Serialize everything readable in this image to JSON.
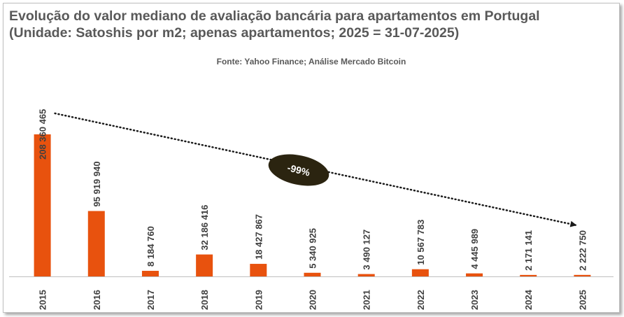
{
  "chart_data": {
    "type": "bar",
    "title": "Evolução do valor mediano de avaliação bancária para apartamentos em Portugal\n(Unidade: Satoshis por m2; apenas apartamentos; 2025 = 31-07-2025)",
    "subtitle": "Fonte: Yahoo Finance; Análise Mercado Bitcoin",
    "categories": [
      "2015",
      "2016",
      "2017",
      "2018",
      "2019",
      "2020",
      "2021",
      "2022",
      "2023",
      "2024",
      "2025"
    ],
    "values": [
      208360465,
      95919940,
      8184760,
      32186416,
      18427867,
      5340925,
      3490127,
      10567783,
      4445989,
      2171141,
      2222750
    ],
    "value_labels": [
      "208 360 465",
      "95 919 940",
      "8 184 760",
      "32 186 416",
      "18 427 867",
      "5 340 925",
      "3 490 127",
      "10 567 783",
      "4 445 989",
      "2 171 141",
      "2 222 750"
    ],
    "ylim": [
      0,
      208360465
    ],
    "grid": false,
    "legend": "none",
    "bar_color": "#e8520e",
    "annotation": {
      "label": "-99%",
      "from_category": "2015",
      "to_category": "2025",
      "style": "dotted-arrow"
    }
  }
}
